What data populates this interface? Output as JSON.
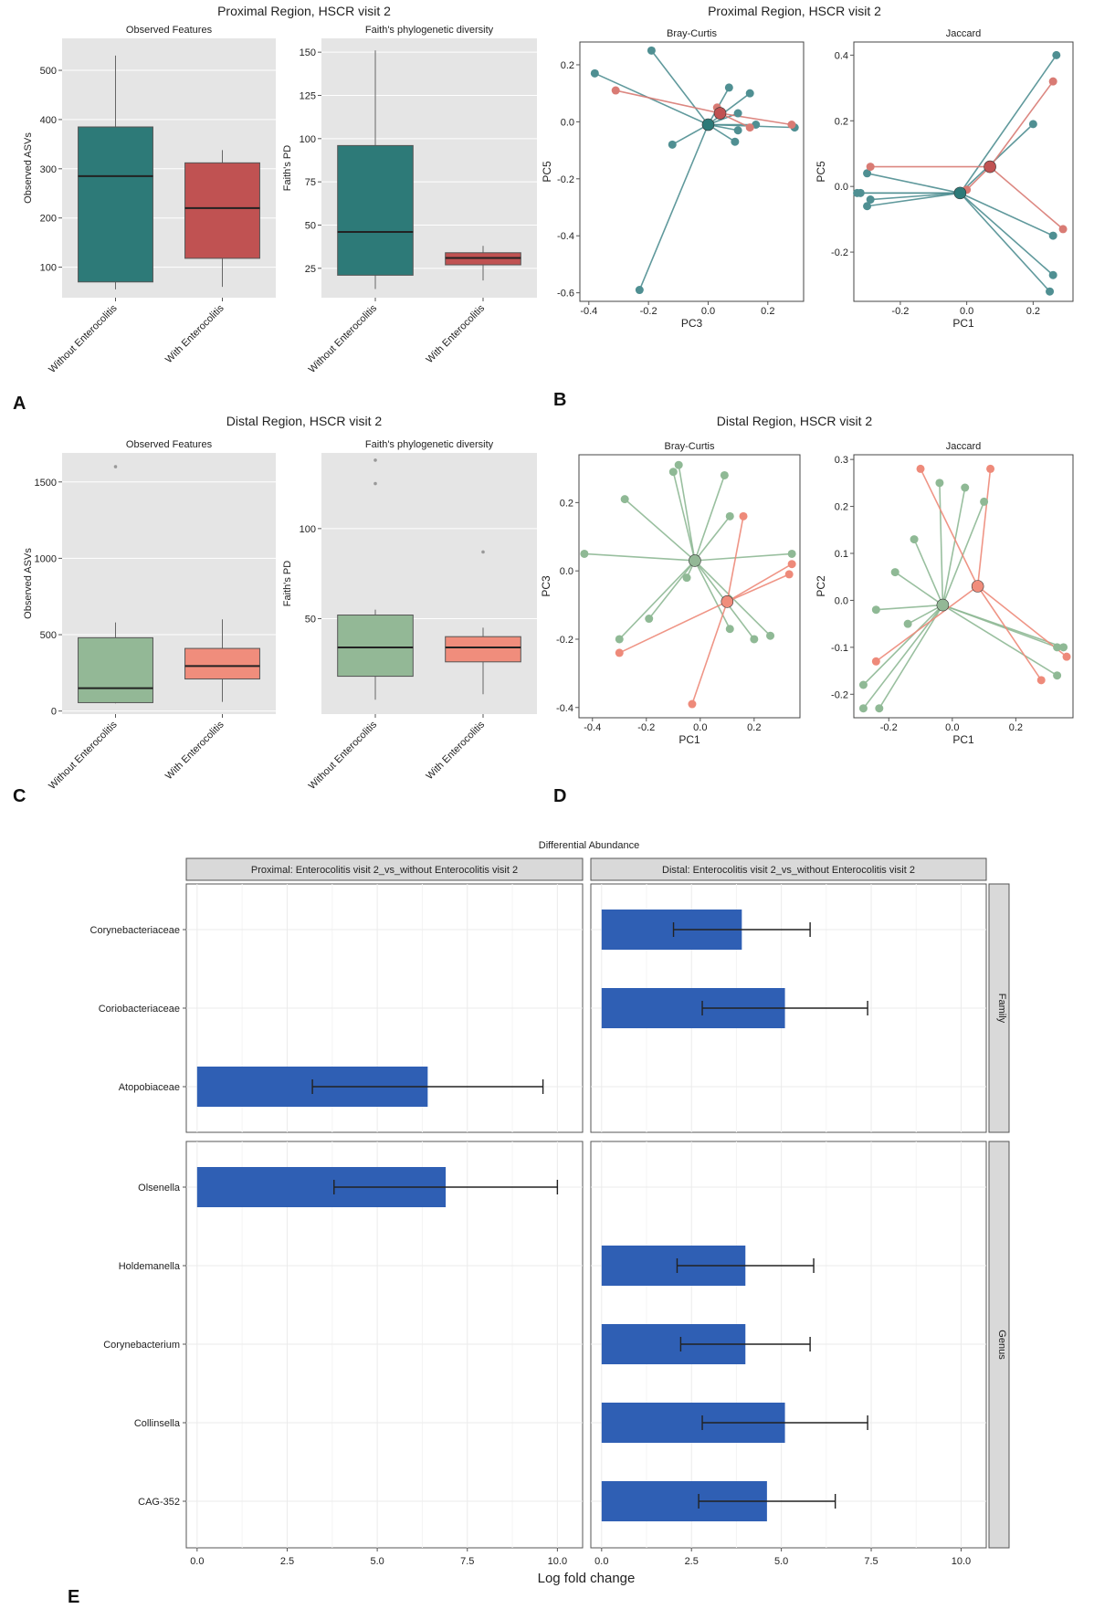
{
  "colors": {
    "panel_bg": "#e5e5e5",
    "without_proximal": "#2d7a78",
    "with_proximal": "#c05252",
    "without_proximal_pt": "#4f8f92",
    "with_proximal_pt": "#d97b74",
    "without_distal": "#93b896",
    "with_distal": "#f08d7c",
    "without_distal_pt": "#8fb995",
    "with_distal_pt": "#ee8a7a",
    "bar": "#2f5fb4"
  },
  "panel_labels": [
    "A",
    "B",
    "C",
    "D",
    "E"
  ],
  "chart_data": [
    {
      "id": "A",
      "type": "box",
      "title": "Proximal Region, HSCR visit 2",
      "subplots": [
        {
          "subtitle": "Observed Features",
          "ylabel": "Observed ASVs",
          "ylim": [
            38,
            565
          ],
          "yticks": [
            100,
            200,
            300,
            400,
            500
          ],
          "categories": [
            "Without Enterocolitis",
            "With Enterocolitis"
          ],
          "boxes": [
            {
              "whisker_low": 55,
              "q1": 70,
              "median": 285,
              "q3": 385,
              "whisker_high": 530,
              "outliers": []
            },
            {
              "whisker_low": 60,
              "q1": 118,
              "median": 220,
              "q3": 312,
              "whisker_high": 338,
              "outliers": []
            }
          ]
        },
        {
          "subtitle": "Faith's phylogenetic diversity",
          "ylabel": "Faith's PD",
          "ylim": [
            8,
            158
          ],
          "yticks": [
            25,
            50,
            75,
            100,
            125,
            150
          ],
          "categories": [
            "Without Enterocolitis",
            "With Enterocolitis"
          ],
          "boxes": [
            {
              "whisker_low": 13,
              "q1": 21,
              "median": 46,
              "q3": 96,
              "whisker_high": 151,
              "outliers": []
            },
            {
              "whisker_low": 18,
              "q1": 27,
              "median": 31,
              "q3": 34,
              "whisker_high": 38,
              "outliers": []
            }
          ]
        }
      ]
    },
    {
      "id": "B",
      "type": "scatter",
      "title": "Proximal Region, HSCR visit 2",
      "subplots": [
        {
          "subtitle": "Bray-Curtis",
          "xlabel": "PC3",
          "ylabel": "PC5",
          "xlim": [
            -0.43,
            0.32
          ],
          "ylim": [
            -0.63,
            0.28
          ],
          "xticks": [
            -0.4,
            -0.2,
            0.0,
            0.2
          ],
          "yticks": [
            -0.6,
            -0.4,
            -0.2,
            0.0,
            0.2
          ],
          "groups": [
            {
              "name": "Without Enterocolitis",
              "centroid": [
                0.0,
                -0.01
              ],
              "points": [
                [
                  -0.38,
                  0.17
                ],
                [
                  -0.19,
                  0.25
                ],
                [
                  -0.12,
                  -0.08
                ],
                [
                  0.07,
                  0.12
                ],
                [
                  0.14,
                  0.1
                ],
                [
                  0.1,
                  0.03
                ],
                [
                  0.16,
                  -0.01
                ],
                [
                  0.1,
                  -0.03
                ],
                [
                  0.09,
                  -0.07
                ],
                [
                  0.29,
                  -0.02
                ],
                [
                  -0.23,
                  -0.59
                ]
              ]
            },
            {
              "name": "With Enterocolitis",
              "centroid": [
                0.04,
                0.03
              ],
              "points": [
                [
                  -0.31,
                  0.11
                ],
                [
                  0.03,
                  0.05
                ],
                [
                  0.14,
                  -0.02
                ],
                [
                  0.28,
                  -0.01
                ]
              ]
            }
          ]
        },
        {
          "subtitle": "Jaccard",
          "xlabel": "PC1",
          "ylabel": "PC5",
          "xlim": [
            -0.34,
            0.32
          ],
          "ylim": [
            -0.35,
            0.44
          ],
          "xticks": [
            -0.2,
            0.0,
            0.2
          ],
          "yticks": [
            -0.2,
            0.0,
            0.2,
            0.4
          ],
          "groups": [
            {
              "name": "Without Enterocolitis",
              "centroid": [
                -0.02,
                -0.02
              ],
              "points": [
                [
                  -0.3,
                  0.04
                ],
                [
                  -0.32,
                  -0.02
                ],
                [
                  -0.33,
                  -0.02
                ],
                [
                  -0.29,
                  -0.04
                ],
                [
                  -0.3,
                  -0.06
                ],
                [
                  0.2,
                  0.19
                ],
                [
                  0.27,
                  0.4
                ],
                [
                  0.26,
                  -0.15
                ],
                [
                  0.26,
                  -0.27
                ],
                [
                  0.25,
                  -0.32
                ]
              ]
            },
            {
              "name": "With Enterocolitis",
              "centroid": [
                0.07,
                0.06
              ],
              "points": [
                [
                  -0.29,
                  0.06
                ],
                [
                  0.0,
                  -0.01
                ],
                [
                  0.26,
                  0.32
                ],
                [
                  0.29,
                  -0.13
                ]
              ]
            }
          ]
        }
      ]
    },
    {
      "id": "C",
      "type": "box",
      "title": "Distal Region, HSCR visit 2",
      "subplots": [
        {
          "subtitle": "Observed Features",
          "ylabel": "Observed ASVs",
          "ylim": [
            -20,
            1690
          ],
          "yticks": [
            0,
            500,
            1000,
            1500
          ],
          "categories": [
            "Without Enterocolitis",
            "With Enterocolitis"
          ],
          "boxes": [
            {
              "whisker_low": 50,
              "q1": 55,
              "median": 150,
              "q3": 480,
              "whisker_high": 580,
              "outliers": [
                1600
              ]
            },
            {
              "whisker_low": 60,
              "q1": 210,
              "median": 295,
              "q3": 410,
              "whisker_high": 600,
              "outliers": []
            }
          ]
        },
        {
          "subtitle": "Faith's phylogenetic diversity",
          "ylabel": "Faith's PD",
          "ylim": [
            -3,
            142
          ],
          "yticks": [
            50,
            100
          ],
          "categories": [
            "Without Enterocolitis",
            "With Enterocolitis"
          ],
          "boxes": [
            {
              "whisker_low": 5,
              "q1": 18,
              "median": 34,
              "q3": 52,
              "whisker_high": 55,
              "outliers": [
                125,
                138
              ]
            },
            {
              "whisker_low": 8,
              "q1": 26,
              "median": 34,
              "q3": 40,
              "whisker_high": 45,
              "outliers": [
                87
              ]
            }
          ]
        }
      ]
    },
    {
      "id": "D",
      "type": "scatter",
      "title": "Distal Region, HSCR visit 2",
      "subplots": [
        {
          "subtitle": "Bray-Curtis",
          "xlabel": "PC1",
          "ylabel": "PC3",
          "xlim": [
            -0.45,
            0.37
          ],
          "ylim": [
            -0.43,
            0.34
          ],
          "xticks": [
            -0.4,
            -0.2,
            0.0,
            0.2
          ],
          "yticks": [
            -0.4,
            -0.2,
            0.0,
            0.2
          ],
          "groups": [
            {
              "name": "Without Enterocolitis",
              "centroid": [
                -0.02,
                0.03
              ],
              "points": [
                [
                  -0.43,
                  0.05
                ],
                [
                  -0.28,
                  0.21
                ],
                [
                  -0.1,
                  0.29
                ],
                [
                  -0.08,
                  0.31
                ],
                [
                  0.09,
                  0.28
                ],
                [
                  0.11,
                  0.16
                ],
                [
                  -0.05,
                  -0.02
                ],
                [
                  -0.19,
                  -0.14
                ],
                [
                  -0.3,
                  -0.2
                ],
                [
                  0.11,
                  -0.17
                ],
                [
                  0.2,
                  -0.2
                ],
                [
                  0.26,
                  -0.19
                ],
                [
                  0.34,
                  0.05
                ]
              ]
            },
            {
              "name": "With Enterocolitis",
              "centroid": [
                0.1,
                -0.09
              ],
              "points": [
                [
                  0.16,
                  0.16
                ],
                [
                  0.34,
                  0.02
                ],
                [
                  0.33,
                  -0.01
                ],
                [
                  -0.3,
                  -0.24
                ],
                [
                  -0.03,
                  -0.39
                ]
              ]
            }
          ]
        },
        {
          "subtitle": "Jaccard",
          "xlabel": "PC1",
          "ylabel": "PC2",
          "xlim": [
            -0.31,
            0.38
          ],
          "ylim": [
            -0.25,
            0.31
          ],
          "xticks": [
            -0.2,
            0.0,
            0.2
          ],
          "yticks": [
            -0.2,
            -0.1,
            0.0,
            0.1,
            0.2,
            0.3
          ],
          "groups": [
            {
              "name": "Without Enterocolitis",
              "centroid": [
                -0.03,
                -0.01
              ],
              "points": [
                [
                  -0.04,
                  0.25
                ],
                [
                  0.04,
                  0.24
                ],
                [
                  0.1,
                  0.21
                ],
                [
                  -0.12,
                  0.13
                ],
                [
                  -0.18,
                  0.06
                ],
                [
                  -0.24,
                  -0.02
                ],
                [
                  -0.14,
                  -0.05
                ],
                [
                  -0.28,
                  -0.18
                ],
                [
                  -0.28,
                  -0.23
                ],
                [
                  -0.23,
                  -0.23
                ],
                [
                  0.33,
                  -0.1
                ],
                [
                  0.35,
                  -0.1
                ],
                [
                  0.33,
                  -0.16
                ]
              ]
            },
            {
              "name": "With Enterocolitis",
              "centroid": [
                0.08,
                0.03
              ],
              "points": [
                [
                  -0.1,
                  0.28
                ],
                [
                  0.12,
                  0.28
                ],
                [
                  -0.24,
                  -0.13
                ],
                [
                  0.28,
                  -0.17
                ],
                [
                  0.36,
                  -0.12
                ]
              ]
            }
          ]
        }
      ]
    },
    {
      "id": "E",
      "type": "bar",
      "title": "Differential Abundance",
      "xlabel": "Log fold change",
      "xlim": [
        -0.3,
        10.7
      ],
      "xticks": [
        0.0,
        2.5,
        5.0,
        7.5,
        10.0
      ],
      "columns": [
        "Proximal:  Enterocolitis visit 2_vs_without Enterocolitis visit 2",
        "Distal:  Enterocolitis visit 2_vs_without Enterocolitis visit 2"
      ],
      "row_groups": [
        {
          "name": "Family",
          "categories": [
            "Corynebacteriaceae",
            "Coriobacteriaceae",
            "Atopobiaceae"
          ]
        },
        {
          "name": "Genus",
          "categories": [
            "Olsenella",
            "Holdemanella",
            "Corynebacterium",
            "Collinsella",
            "CAG-352"
          ]
        }
      ],
      "bars": [
        {
          "column": 1,
          "category": "Corynebacteriaceae",
          "value": 3.9,
          "err_low": 2.0,
          "err_high": 5.8
        },
        {
          "column": 1,
          "category": "Coriobacteriaceae",
          "value": 5.1,
          "err_low": 2.8,
          "err_high": 7.4
        },
        {
          "column": 0,
          "category": "Atopobiaceae",
          "value": 6.4,
          "err_low": 3.2,
          "err_high": 9.6
        },
        {
          "column": 0,
          "category": "Olsenella",
          "value": 6.9,
          "err_low": 3.8,
          "err_high": 10.0
        },
        {
          "column": 1,
          "category": "Holdemanella",
          "value": 4.0,
          "err_low": 2.1,
          "err_high": 5.9
        },
        {
          "column": 1,
          "category": "Corynebacterium",
          "value": 4.0,
          "err_low": 2.2,
          "err_high": 5.8
        },
        {
          "column": 1,
          "category": "Collinsella",
          "value": 5.1,
          "err_low": 2.8,
          "err_high": 7.4
        },
        {
          "column": 1,
          "category": "CAG-352",
          "value": 4.6,
          "err_low": 2.7,
          "err_high": 6.5
        }
      ]
    }
  ]
}
